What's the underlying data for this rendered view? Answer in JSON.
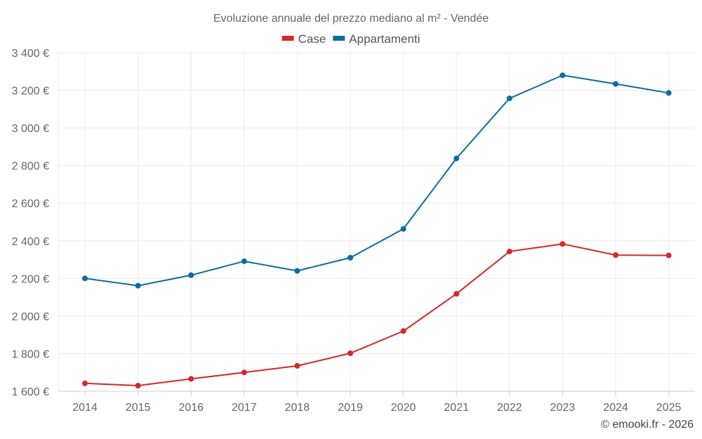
{
  "chart_data": {
    "type": "line",
    "title": "Evoluzione annuale del prezzo mediano al m² - Vendée",
    "categories": [
      "2014",
      "2015",
      "2016",
      "2017",
      "2018",
      "2019",
      "2020",
      "2021",
      "2022",
      "2023",
      "2024",
      "2025"
    ],
    "series": [
      {
        "name": "Case",
        "color": "#d62728",
        "values": [
          1642,
          1630,
          1666,
          1700,
          1735,
          1802,
          1920,
          2118,
          2343,
          2383,
          2324,
          2322
        ]
      },
      {
        "name": "Appartamenti",
        "color": "#0f6ba1",
        "values": [
          2200,
          2161,
          2217,
          2291,
          2240,
          2310,
          2463,
          2838,
          3157,
          3280,
          3234,
          3186
        ]
      }
    ],
    "ylim": [
      1600,
      3400
    ],
    "yticks": [
      1600,
      1800,
      2000,
      2200,
      2400,
      2600,
      2800,
      3000,
      3200,
      3400
    ],
    "ytick_labels": [
      "1 600 €",
      "1 800 €",
      "2 000 €",
      "2 200 €",
      "2 400 €",
      "2 600 €",
      "2 800 €",
      "3 000 €",
      "3 200 €",
      "3 400 €"
    ],
    "grid": true,
    "legend_position": "top-center"
  },
  "credit": "© emooki.fr - 2026"
}
